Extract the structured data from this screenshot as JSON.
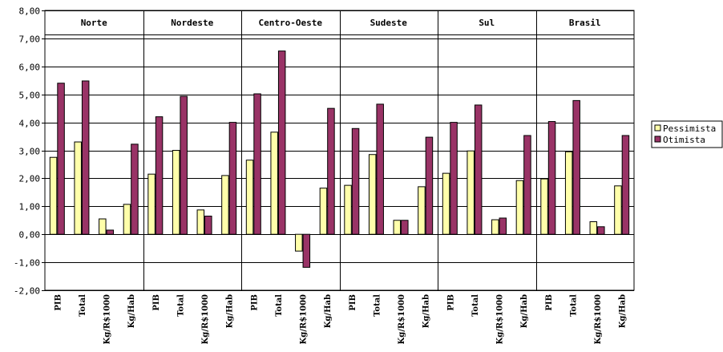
{
  "chart_data": {
    "type": "bar",
    "regions": [
      "Norte",
      "Nordeste",
      "Centro-Oeste",
      "Sudeste",
      "Sul",
      "Brasil"
    ],
    "subcategories": [
      "PIB",
      "Total",
      "Kg/R$1000",
      "Kg/Hab"
    ],
    "series": [
      {
        "name": "Pessimista",
        "color": "#FFFFAA",
        "values": [
          [
            2.75,
            3.3,
            0.55,
            1.07
          ],
          [
            2.15,
            3.0,
            0.87,
            2.1
          ],
          [
            2.65,
            3.65,
            -0.6,
            1.65
          ],
          [
            1.75,
            2.85,
            0.5,
            1.7
          ],
          [
            2.18,
            2.98,
            0.52,
            1.92
          ],
          [
            1.98,
            2.95,
            0.45,
            1.73
          ]
        ]
      },
      {
        "name": "Otimista",
        "color": "#993366",
        "values": [
          [
            5.4,
            5.48,
            0.15,
            3.22
          ],
          [
            4.2,
            4.93,
            0.65,
            4.0
          ],
          [
            5.02,
            6.55,
            -1.18,
            4.5
          ],
          [
            3.78,
            4.65,
            0.5,
            3.47
          ],
          [
            4.0,
            4.62,
            0.58,
            3.53
          ],
          [
            4.03,
            4.78,
            0.27,
            3.53
          ]
        ]
      }
    ],
    "ylim": [
      -2,
      8
    ],
    "yticks": [
      "-2,00",
      "-1,00",
      "0,00",
      "1,00",
      "2,00",
      "3,00",
      "4,00",
      "5,00",
      "6,00",
      "7,00",
      "8,00"
    ],
    "grid": true,
    "legend": "right"
  }
}
